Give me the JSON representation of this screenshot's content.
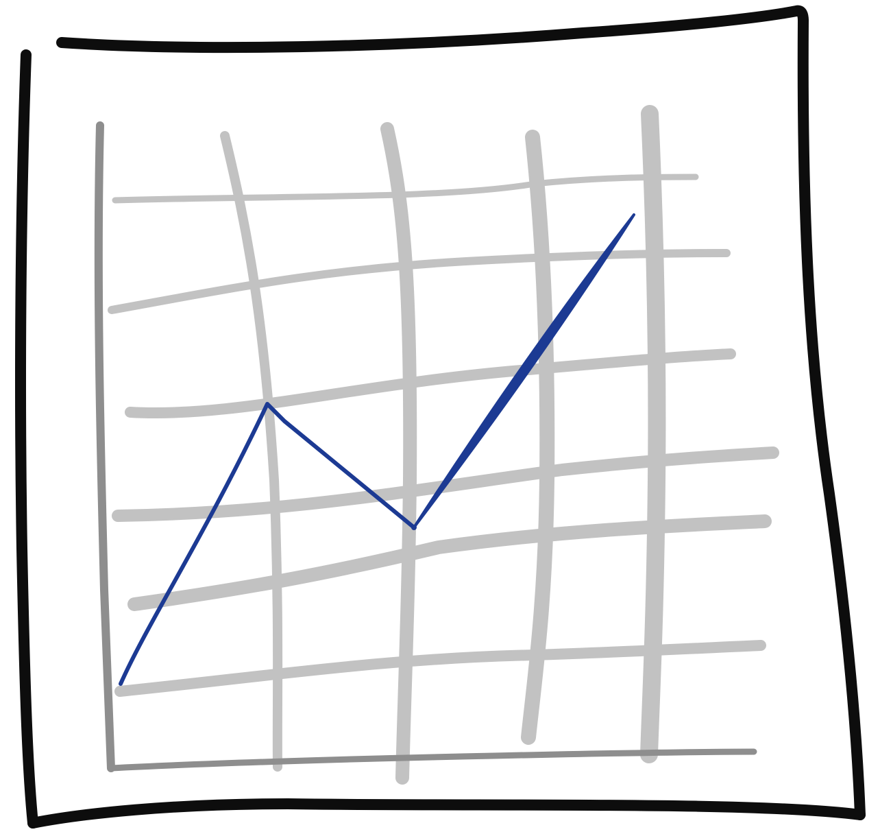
{
  "illustration": {
    "icon": "hand-drawn-line-chart-icon",
    "colors": {
      "background": "#ffffff",
      "frame": "#0d0d0d",
      "grid": "#c2c2c2",
      "axis": "#8e8e8e",
      "line": "#1c3a93"
    },
    "grid": {
      "vertical_lines": 5,
      "horizontal_lines": 6
    },
    "trend_points": [
      {
        "x": 0,
        "y": 0
      },
      {
        "x": 1,
        "y": 3.4
      },
      {
        "x": 2,
        "y": 1.9
      },
      {
        "x": 3.5,
        "y": 5.7
      }
    ]
  }
}
